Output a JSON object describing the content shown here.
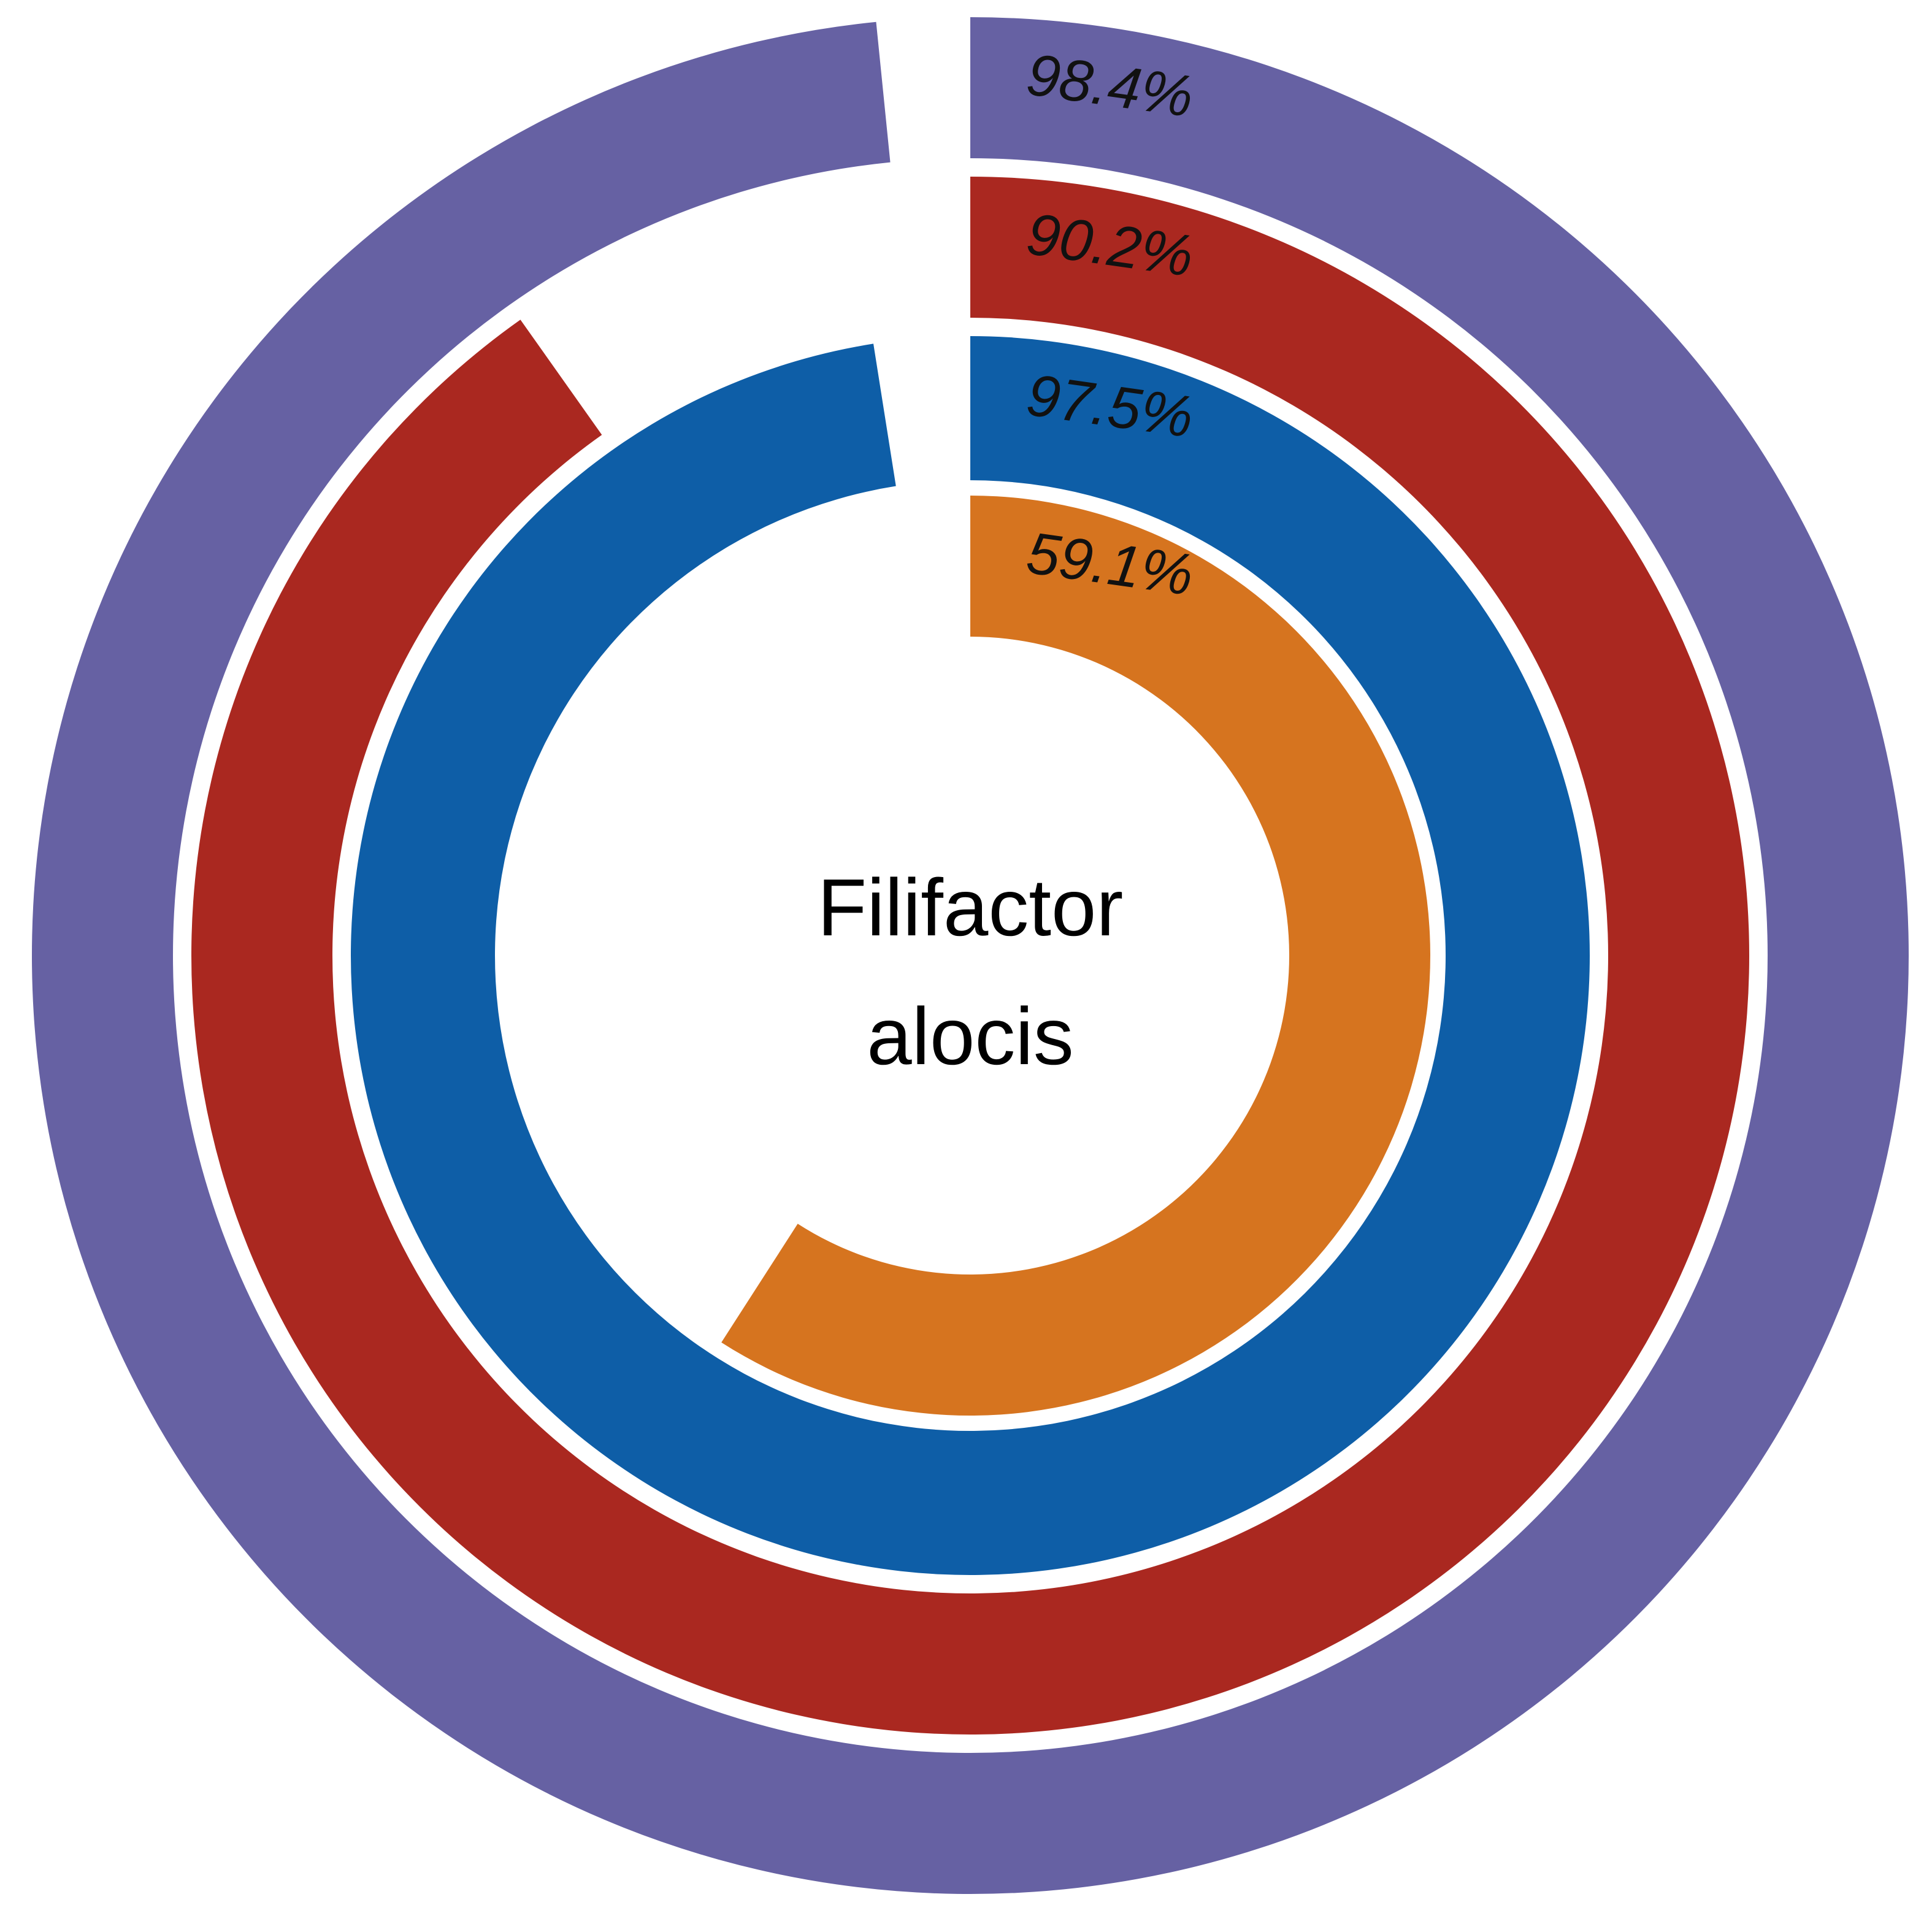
{
  "chart_data": {
    "type": "radial-bar",
    "center_label_lines": [
      "Filifactor",
      "alocis"
    ],
    "rings": [
      {
        "value": 98.4,
        "label": "98.4%",
        "color": "#6661a3"
      },
      {
        "value": 90.2,
        "label": "90.2%",
        "color": "#aa2820"
      },
      {
        "value": 97.5,
        "label": "97.5%",
        "color": "#0e5ea7"
      },
      {
        "value": 59.1,
        "label": "59.1%",
        "color": "#d6741f"
      }
    ],
    "max_value": 100,
    "background": "#ffffff",
    "separator_color": "#ffffff"
  }
}
